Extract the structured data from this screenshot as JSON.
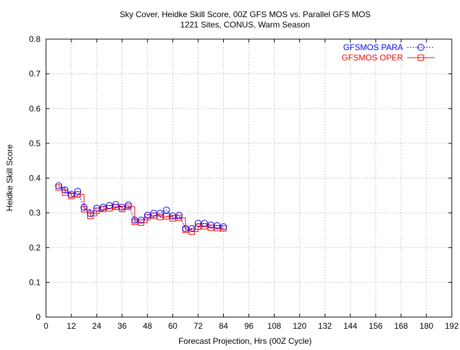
{
  "chart_data": {
    "type": "line",
    "title": "Sky Cover, Heidke Skill Score, 00Z GFS MOS vs. Parallel GFS MOS",
    "subtitle": "1221 Sites, CONUS, Warm Season",
    "xlabel": "Forecast Projection, Hrs (00Z Cycle)",
    "ylabel": "Heidke Skill Score",
    "xlim": [
      0,
      192
    ],
    "ylim": [
      0,
      0.8
    ],
    "xticks": [
      0,
      12,
      24,
      36,
      48,
      60,
      72,
      84,
      96,
      108,
      120,
      132,
      144,
      156,
      168,
      180,
      192
    ],
    "xtick_labels": [
      "0",
      "12",
      "24",
      "36",
      "48",
      "60",
      "72",
      "84",
      "96",
      "108",
      "120",
      "132",
      "144",
      "156",
      "168",
      "180",
      "192"
    ],
    "yticks": [
      0,
      0.1,
      0.2,
      0.3,
      0.4,
      0.5,
      0.6,
      0.7,
      0.8
    ],
    "ytick_labels": [
      "0",
      "0.1",
      "0.2",
      "0.3",
      "0.4",
      "0.5",
      "0.6",
      "0.7",
      "0.8"
    ],
    "grid": true,
    "legend_position": "top-right",
    "x": [
      6,
      9,
      12,
      15,
      18,
      21,
      24,
      27,
      30,
      33,
      36,
      39,
      42,
      45,
      48,
      51,
      54,
      57,
      60,
      63,
      66,
      69,
      72,
      75,
      78,
      81,
      84
    ],
    "series": [
      {
        "name": "GFSMOS PARA",
        "color": "#0000ff",
        "line_style": "dotted",
        "marker": "circle",
        "values": [
          0.378,
          0.366,
          0.353,
          0.362,
          0.316,
          0.298,
          0.313,
          0.316,
          0.321,
          0.324,
          0.316,
          0.323,
          0.279,
          0.279,
          0.293,
          0.299,
          0.299,
          0.308,
          0.291,
          0.293,
          0.255,
          0.255,
          0.27,
          0.27,
          0.265,
          0.263,
          0.26
        ]
      },
      {
        "name": "GFSMOS OPER",
        "color": "#ff0000",
        "line_style": "solid",
        "marker": "square",
        "values": [
          0.373,
          0.358,
          0.348,
          0.353,
          0.31,
          0.291,
          0.306,
          0.311,
          0.313,
          0.317,
          0.311,
          0.318,
          0.274,
          0.272,
          0.287,
          0.292,
          0.288,
          0.29,
          0.284,
          0.286,
          0.251,
          0.246,
          0.26,
          0.261,
          0.257,
          0.256,
          0.255
        ]
      }
    ]
  }
}
